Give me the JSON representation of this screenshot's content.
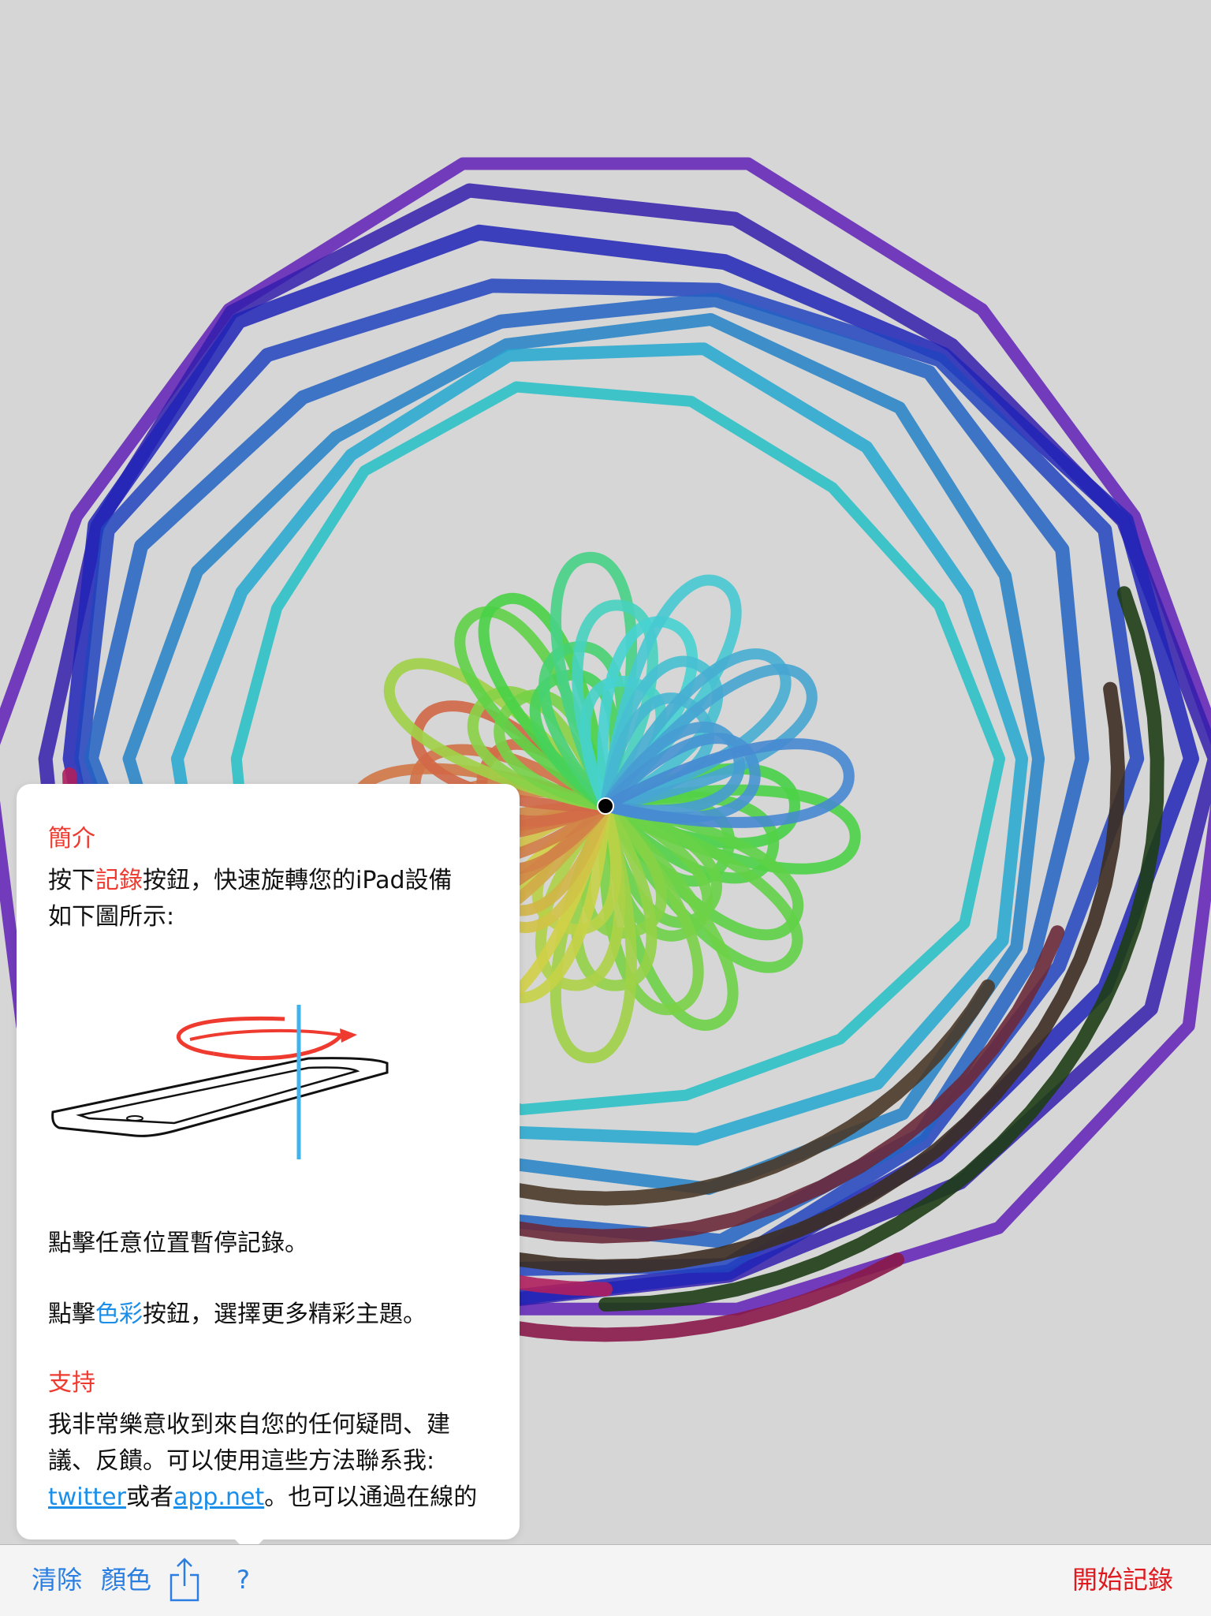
{
  "popover": {
    "intro_title": "簡介",
    "intro_pre": "按下",
    "intro_record": "記錄",
    "intro_post": "按鈕，快速旋轉您的iPad設備",
    "intro_line2": "如下圖所示:",
    "pause_text": "點擊任意位置暫停記錄。",
    "color_pre": "點擊",
    "color_word": "色彩",
    "color_post": "按鈕，選擇更多精彩主題。",
    "support_title": "支持",
    "support_line1": "我非常樂意收到來自您的任何疑問、建",
    "support_line2": "議、反饋。可以使用這些方法聯系我:",
    "twitter_link": "twitter",
    "or_text": "或者",
    "appnet_link": "app.net",
    "support_tail": "。也可以通過在線的"
  },
  "toolbar": {
    "clear_label": "清除",
    "color_label": "顏色",
    "help_label": "?",
    "record_label": "開始記錄"
  },
  "colors": {
    "background": "#d6d6d6",
    "accent_blue": "#2a7de1",
    "accent_red": "#e0191e",
    "title_red": "#ef3a2f",
    "link_blue": "#1a8ee8"
  }
}
